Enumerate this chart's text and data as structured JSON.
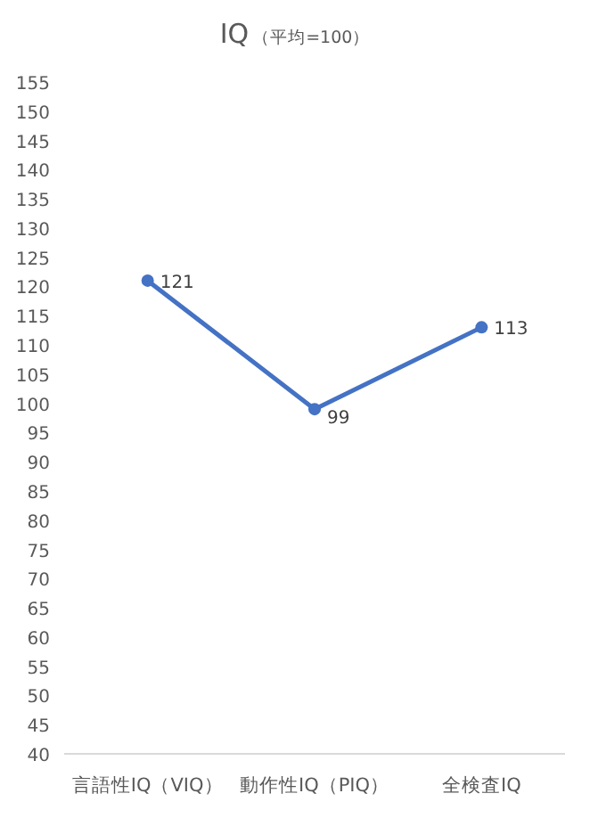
{
  "chart_data": {
    "type": "line",
    "title": "IQ",
    "subtitle": "（平均=100）",
    "categories": [
      "言語性IQ（VIQ）",
      "動作性IQ（PIQ）",
      "全検査IQ"
    ],
    "series": [
      {
        "color": "#4472c4",
        "values": [
          121,
          99,
          113
        ]
      }
    ],
    "ylim": [
      40,
      155
    ],
    "yticks": [
      40,
      45,
      50,
      55,
      60,
      65,
      70,
      75,
      80,
      85,
      90,
      95,
      100,
      105,
      110,
      115,
      120,
      125,
      130,
      135,
      140,
      145,
      150,
      155
    ],
    "grid": false,
    "marker": "circle",
    "line_style": "solid",
    "data_labels": true
  }
}
